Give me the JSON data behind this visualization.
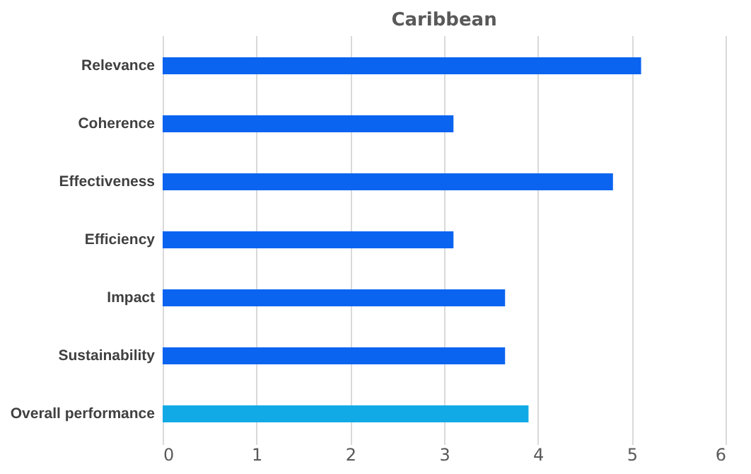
{
  "chart_data": {
    "type": "bar",
    "orientation": "horizontal",
    "title": "Caribbean",
    "categories": [
      "Relevance",
      "Coherence",
      "Effectiveness",
      "Efficiency",
      "Impact",
      "Sustainability",
      "Overall performance"
    ],
    "values": [
      5.1,
      3.1,
      4.8,
      3.1,
      3.65,
      3.65,
      3.9
    ],
    "colors": [
      "#0a64f0",
      "#0a64f0",
      "#0a64f0",
      "#0a64f0",
      "#0a64f0",
      "#0a64f0",
      "#12aae6"
    ],
    "xlim": [
      0,
      6
    ],
    "xticks": [
      0,
      1,
      2,
      3,
      4,
      5,
      6
    ],
    "grid": "x"
  }
}
